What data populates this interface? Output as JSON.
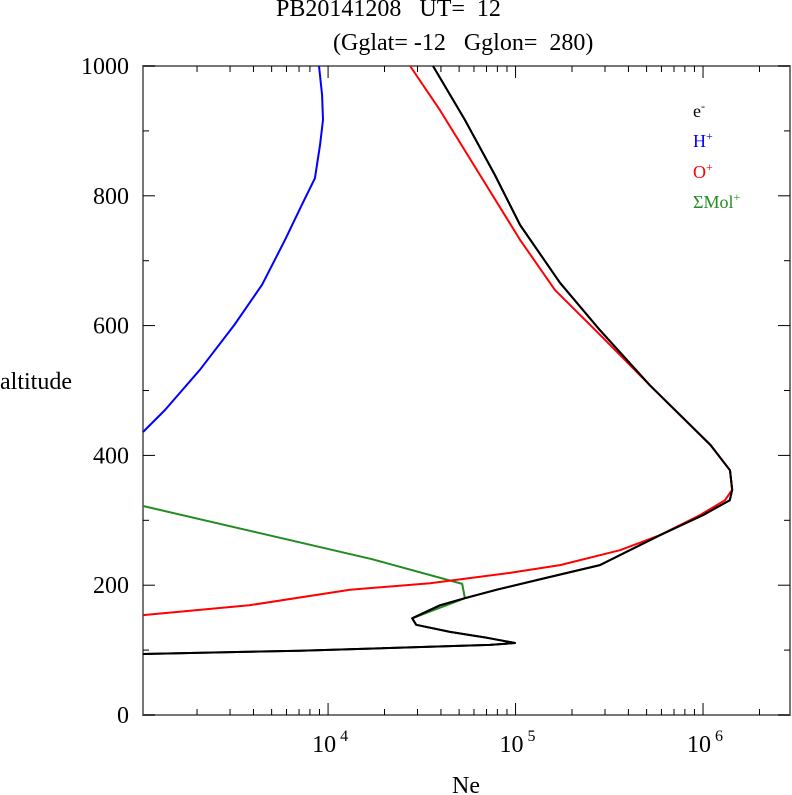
{
  "chart_data": {
    "type": "line",
    "title": "PB20141208   UT=  12",
    "subtitle": "(Gglat= -12   Gglon=  280)",
    "xlabel": "Ne",
    "ylabel": "altitude",
    "xscale": "log",
    "xlim": [
      1030,
      2910000
    ],
    "ylim": [
      0,
      1000
    ],
    "x_tick_labels": [
      {
        "value": 10000,
        "base": "10",
        "exp": "4"
      },
      {
        "value": 100000,
        "base": "10",
        "exp": "5"
      },
      {
        "value": 1000000,
        "base": "10",
        "exp": "6"
      }
    ],
    "y_ticks": [
      0,
      200,
      400,
      600,
      800,
      1000
    ],
    "y_tick_labels": [
      "0",
      "200",
      "400",
      "600",
      "800",
      "1000"
    ],
    "grid": false,
    "legend_position": "top-right",
    "series": [
      {
        "name": "e-",
        "label_base": "e",
        "label_sup": "-",
        "color": "#000000",
        "x": [
          1030,
          7080,
          73100,
          99300,
          70500,
          44700,
          29500,
          28100,
          39500,
          53700,
          79400,
          143600,
          281800,
          588800,
          1000000,
          1390000,
          1430000,
          1393000,
          1096000,
          521000,
          281800,
          172600,
          105800,
          77600,
          53700,
          36300
        ],
        "y": [
          94,
          99,
          108,
          111,
          119,
          128,
          139,
          149,
          169,
          180,
          193,
          211,
          231,
          277,
          308,
          331,
          347,
          377,
          416,
          508,
          593,
          666,
          755,
          832,
          917,
          1000
        ]
      },
      {
        "name": "H+",
        "label_base": "H",
        "label_sup": "+",
        "color": "#0000ff",
        "x": [
          1030,
          1350,
          2075,
          3160,
          4450,
          5890,
          7240,
          8510,
          9060,
          9400,
          9290,
          8950
        ],
        "y": [
          436,
          470,
          532,
          601,
          663,
          732,
          786,
          827,
          878,
          917,
          955,
          1000
        ]
      },
      {
        "name": "O+",
        "label_base": "O",
        "label_sup": "+",
        "color": "#ff0000",
        "x": [
          1030,
          3800,
          13090,
          34990,
          93300,
          172600,
          360600,
          588800,
          963800,
          1309000,
          1429000,
          1393000,
          1096000,
          521000,
          281800,
          162200,
          105700,
          64600,
          39500,
          27400
        ],
        "y": [
          154,
          169,
          193,
          203,
          219,
          231,
          254,
          277,
          308,
          331,
          347,
          377,
          416,
          508,
          586,
          655,
          732,
          832,
          932,
          1000
        ]
      },
      {
        "name": "ΣMol+",
        "label_base": "ΣMol",
        "label_sup": "+",
        "color": "#228b22",
        "x": [
          1030,
          17180,
          51900,
          53700,
          28100
        ],
        "y": [
          322,
          240,
          202,
          180,
          149
        ]
      }
    ]
  }
}
